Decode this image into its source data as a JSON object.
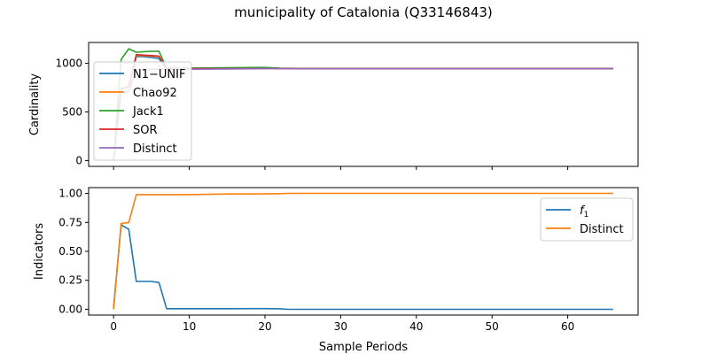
{
  "title": "municipality of Catalonia (Q33146843)",
  "chart_data": [
    {
      "type": "line",
      "ylabel": "Cardinality",
      "xlabel": "",
      "xlim": [
        -3.3,
        69.3
      ],
      "ylim": [
        -60,
        1215
      ],
      "xticks": [
        0,
        10,
        20,
        30,
        40,
        50,
        60
      ],
      "yticks": [
        0,
        500,
        1000
      ],
      "ytick_labels": [
        "0",
        "500",
        "1000"
      ],
      "show_xtick_labels": false,
      "legend": "upper-left",
      "series": [
        {
          "name": "N1−UNIF",
          "color": "#1f77b4",
          "x": [
            0,
            1,
            2,
            3,
            4,
            5,
            6,
            7,
            10,
            15,
            20,
            22,
            25,
            30,
            40,
            50,
            60,
            66
          ],
          "y": [
            0,
            740,
            760,
            1070,
            1070,
            1060,
            1050,
            940,
            945,
            948,
            950,
            948,
            946,
            946,
            946,
            946,
            946,
            946
          ]
        },
        {
          "name": "Chao92",
          "color": "#ff7f0e",
          "x": [
            0,
            1,
            2,
            3,
            4,
            5,
            6,
            7,
            10,
            15,
            20,
            22,
            25,
            30,
            40,
            50,
            60,
            66
          ],
          "y": [
            0,
            740,
            760,
            1080,
            1080,
            1075,
            1070,
            950,
            950,
            950,
            952,
            948,
            946,
            946,
            946,
            946,
            946,
            946
          ]
        },
        {
          "name": "Jack1",
          "color": "#2ca02c",
          "x": [
            0,
            1,
            2,
            3,
            4,
            5,
            6,
            7,
            10,
            15,
            20,
            22,
            25,
            30,
            40,
            50,
            60,
            66
          ],
          "y": [
            0,
            1040,
            1150,
            1115,
            1120,
            1125,
            1125,
            950,
            952,
            955,
            958,
            950,
            947,
            946,
            946,
            946,
            946,
            946
          ]
        },
        {
          "name": "SOR",
          "color": "#d62728",
          "x": [
            0,
            1,
            2,
            3,
            4,
            5,
            6,
            7,
            10,
            15,
            20,
            22,
            25,
            30,
            40,
            50,
            60,
            66
          ],
          "y": [
            0,
            740,
            760,
            1090,
            1085,
            1080,
            1075,
            945,
            945,
            946,
            946,
            946,
            946,
            946,
            946,
            946,
            946,
            946
          ]
        },
        {
          "name": "Distinct",
          "color": "#9467bd",
          "x": [
            0,
            1,
            2,
            3,
            4,
            5,
            6,
            7,
            10,
            15,
            20,
            22,
            25,
            30,
            40,
            50,
            60,
            66
          ],
          "y": [
            0,
            700,
            710,
            935,
            938,
            940,
            940,
            940,
            940,
            943,
            945,
            946,
            946,
            946,
            946,
            946,
            946,
            946
          ]
        }
      ]
    },
    {
      "type": "line",
      "ylabel": "Indicators",
      "xlabel": "Sample Periods",
      "xlim": [
        -3.3,
        69.3
      ],
      "ylim": [
        -0.05,
        1.05
      ],
      "xticks": [
        0,
        10,
        20,
        30,
        40,
        50,
        60
      ],
      "yticks": [
        0,
        0.25,
        0.5,
        0.75,
        1.0
      ],
      "ytick_labels": [
        "0.00",
        "0.25",
        "0.50",
        "0.75",
        "1.00"
      ],
      "show_xtick_labels": true,
      "legend": "upper-right",
      "series": [
        {
          "name": "f1",
          "color": "#1f77b4",
          "x": [
            0,
            1,
            2,
            3,
            4,
            5,
            6,
            7,
            10,
            15,
            20,
            22,
            23,
            30,
            40,
            50,
            60,
            66
          ],
          "y": [
            0.02,
            0.73,
            0.69,
            0.24,
            0.24,
            0.24,
            0.23,
            0.005,
            0.005,
            0.005,
            0.006,
            0.004,
            0.0,
            0.0,
            0.0,
            0.0,
            0.0,
            0.0
          ]
        },
        {
          "name": "Distinct",
          "color": "#ff7f0e",
          "x": [
            0,
            1,
            2,
            3,
            4,
            5,
            6,
            7,
            10,
            15,
            20,
            22,
            23,
            30,
            40,
            50,
            60,
            66
          ],
          "y": [
            0.0,
            0.74,
            0.75,
            0.99,
            0.99,
            0.99,
            0.99,
            0.99,
            0.99,
            0.995,
            0.996,
            0.998,
            1.0,
            1.0,
            1.0,
            1.0,
            1.0,
            1.0
          ]
        }
      ]
    }
  ]
}
